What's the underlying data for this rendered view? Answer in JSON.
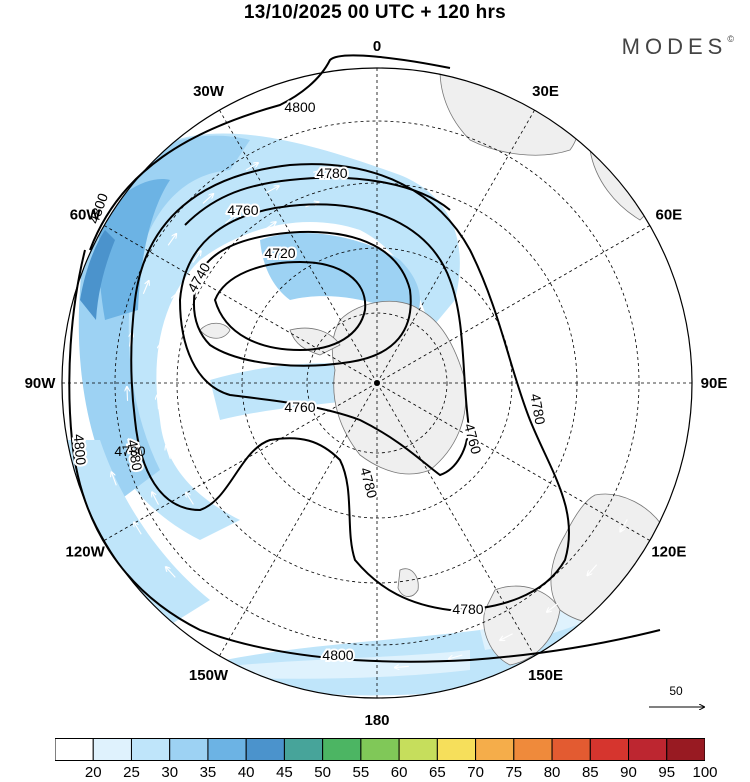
{
  "title": "13/10/2025  00 UTC  + 120 hrs",
  "brand": "MODES",
  "brand_mark": "©",
  "lon_labels": [
    {
      "id": "lon-0",
      "text": "0",
      "deg": 0
    },
    {
      "id": "lon-30e",
      "text": "30E",
      "deg": 30
    },
    {
      "id": "lon-60e",
      "text": "60E",
      "deg": 60
    },
    {
      "id": "lon-90e",
      "text": "90E",
      "deg": 90
    },
    {
      "id": "lon-120e",
      "text": "120E",
      "deg": 120
    },
    {
      "id": "lon-150e",
      "text": "150E",
      "deg": 150
    },
    {
      "id": "lon-180",
      "text": "180",
      "deg": 180
    },
    {
      "id": "lon-150w",
      "text": "150W",
      "deg": 210
    },
    {
      "id": "lon-120w",
      "text": "120W",
      "deg": 240
    },
    {
      "id": "lon-90w",
      "text": "90W",
      "deg": 270
    },
    {
      "id": "lon-60w",
      "text": "60W",
      "deg": 300
    },
    {
      "id": "lon-30w",
      "text": "30W",
      "deg": 330
    }
  ],
  "contour_labels": [
    "4800",
    "4780",
    "4760",
    "4740",
    "4720",
    "4800",
    "4780",
    "4760",
    "4760",
    "4780",
    "4780",
    "4780",
    "4800",
    "4800",
    "4780"
  ],
  "reference_vector": "50",
  "colorbar": {
    "ticks": [
      "20",
      "25",
      "30",
      "35",
      "40",
      "45",
      "50",
      "55",
      "60",
      "65",
      "70",
      "75",
      "80",
      "85",
      "90",
      "95",
      "100"
    ],
    "colors": [
      "#ffffff",
      "#dff2fd",
      "#bfe5fa",
      "#9dd2f3",
      "#6cb3e4",
      "#4b93cc",
      "#47a49a",
      "#4cb563",
      "#80c858",
      "#c6de5c",
      "#f6df5b",
      "#f5ad4a",
      "#ef8a3b",
      "#e35b31",
      "#d6352e",
      "#bd2630",
      "#981a22"
    ]
  }
}
